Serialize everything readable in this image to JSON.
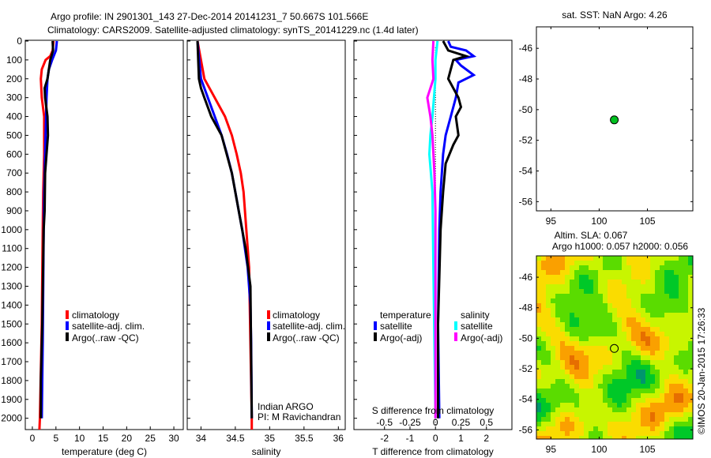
{
  "title": {
    "line1": "Argo profile: IN 2901301_143 27-Dec-2014 20141231_7 50.667S 101.566E",
    "line2": "Climatology: CARS2009. Satellite-adjusted climatology: synTS_20141229.nc (1.4d later)"
  },
  "colors": {
    "climatology": "#ff0000",
    "satellite": "#0000ff",
    "argo": "#000000",
    "sal_satellite": "#00ffff",
    "sal_argo": "#ff00ff"
  },
  "chart_data": [
    {
      "type": "line",
      "id": "temperature",
      "xlabel": "temperature (deg C)",
      "ylabel": "depth",
      "xlim": [
        -1.5,
        32
      ],
      "ylim": [
        2060,
        0
      ],
      "xticks": [
        0,
        5,
        10,
        15,
        20,
        25,
        30
      ],
      "yticks": [
        0,
        100,
        200,
        300,
        400,
        500,
        600,
        700,
        800,
        900,
        1000,
        1100,
        1200,
        1300,
        1400,
        1500,
        1600,
        1700,
        1800,
        1900,
        2000
      ],
      "legend": [
        "climatology",
        "satellite-adj. clim.",
        "Argo(..raw -QC)"
      ],
      "series": [
        {
          "name": "climatology",
          "color": "#ff0000",
          "depth": [
            0,
            50,
            80,
            100,
            150,
            200,
            300,
            400,
            600,
            800,
            1000,
            1500,
            2000,
            2060
          ],
          "values": [
            4.5,
            4.3,
            3.8,
            2.8,
            2.0,
            1.8,
            2.0,
            2.5,
            2.5,
            2.3,
            2.2,
            2.0,
            1.6,
            1.5
          ]
        },
        {
          "name": "satellite-adj. clim.",
          "color": "#0000ff",
          "depth": [
            0,
            50,
            100,
            150,
            200,
            300,
            400,
            600,
            800,
            1000,
            1300,
            1600,
            2000
          ],
          "values": [
            5.2,
            5.0,
            4.2,
            3.5,
            3.2,
            3.0,
            2.9,
            2.7,
            2.5,
            2.4,
            2.3,
            2.2,
            2.0
          ]
        },
        {
          "name": "Argo(..raw -QC)",
          "color": "#000000",
          "depth": [
            0,
            50,
            100,
            200,
            250,
            300,
            400,
            500,
            600,
            700,
            900,
            1000,
            1500,
            1800,
            2000
          ],
          "values": [
            4.3,
            4.4,
            3.8,
            3.2,
            2.6,
            2.7,
            3.2,
            3.3,
            3.0,
            2.7,
            2.6,
            2.4,
            2.1,
            1.8,
            1.8
          ]
        }
      ]
    },
    {
      "type": "line",
      "id": "salinity",
      "xlabel": "salinity",
      "xlim": [
        33.8,
        36.1
      ],
      "ylim": [
        2060,
        0
      ],
      "xticks": [
        34,
        34.5,
        35,
        35.5,
        36
      ],
      "legend": [
        "climatology",
        "satellite-adj. clim.",
        "Argo(..raw -QC)"
      ],
      "annotation": [
        "Indian ARGO",
        "PI: M Ravichandran"
      ],
      "series": [
        {
          "name": "climatology",
          "color": "#ff0000",
          "depth": [
            0,
            200,
            300,
            400,
            500,
            600,
            700,
            800,
            1000,
            1200,
            2000,
            2060
          ],
          "values": [
            33.95,
            34.05,
            34.2,
            34.35,
            34.45,
            34.52,
            34.58,
            34.62,
            34.66,
            34.7,
            34.74,
            34.74
          ]
        },
        {
          "name": "satellite-adj. clim.",
          "color": "#0000ff",
          "depth": [
            0,
            200,
            300,
            400,
            500,
            600,
            700,
            800,
            900,
            1000,
            1200,
            1400,
            1600,
            2000
          ],
          "values": [
            33.95,
            34.0,
            34.1,
            34.2,
            34.3,
            34.38,
            34.45,
            34.5,
            34.55,
            34.6,
            34.68,
            34.72,
            34.73,
            34.74
          ]
        },
        {
          "name": "Argo(..raw -QC)",
          "color": "#000000",
          "depth": [
            0,
            200,
            250,
            300,
            400,
            500,
            700,
            900,
            1100,
            1300,
            2000
          ],
          "values": [
            33.95,
            33.97,
            34.0,
            34.05,
            34.15,
            34.3,
            34.45,
            34.55,
            34.65,
            34.72,
            34.74
          ]
        }
      ]
    },
    {
      "type": "line",
      "id": "difference",
      "xlabel": "T difference from climatology",
      "x2label": "S difference from climatology",
      "xlim": [
        -3.2,
        3.0
      ],
      "x2lim": [
        -0.8,
        0.75
      ],
      "xticks": [
        -2,
        -1,
        0,
        1,
        2
      ],
      "x2ticks": [
        "-0.5",
        "-0.25",
        "0",
        "0.25",
        "0.5"
      ],
      "x2tickvalues": [
        -0.5,
        -0.25,
        0,
        0.25,
        0.5
      ],
      "ylim": [
        2060,
        0
      ],
      "legend": {
        "temperature_header": "temperature",
        "salinity_header": "salinity",
        "t_satellite": "satellite",
        "t_argo": "Argo(-adj)",
        "s_satellite": "satellite",
        "s_argo": "Argo(-adj)"
      },
      "series": [
        {
          "name": "T satellite",
          "axis": "T",
          "color": "#0000ff",
          "depth": [
            0,
            30,
            50,
            70,
            80,
            100,
            130,
            180,
            220,
            300,
            400,
            500,
            600,
            800,
            1000,
            1500,
            2000
          ],
          "values": [
            0.5,
            0.6,
            1.2,
            1.4,
            1.5,
            0.8,
            1.0,
            1.5,
            0.9,
            0.8,
            0.6,
            0.4,
            0.3,
            0.2,
            0.15,
            0.1,
            0.15
          ]
        },
        {
          "name": "T Argo(-adj)",
          "axis": "T",
          "color": "#000000",
          "depth": [
            0,
            50,
            80,
            100,
            150,
            200,
            300,
            350,
            400,
            500,
            550,
            650,
            800,
            1000,
            1500,
            2000
          ],
          "values": [
            0.3,
            0.5,
            1.2,
            0.7,
            0.6,
            0.5,
            0.9,
            1.0,
            0.8,
            0.9,
            0.7,
            0.4,
            0.3,
            0.2,
            0.1,
            0.1
          ]
        },
        {
          "name": "S satellite",
          "axis": "S",
          "color": "#00ffff",
          "depth": [
            0,
            100,
            200,
            400,
            500,
            600,
            800,
            1200,
            1600,
            2000
          ],
          "values": [
            0.02,
            0.0,
            0.0,
            -0.03,
            -0.05,
            -0.06,
            -0.03,
            -0.02,
            -0.01,
            0.0
          ]
        },
        {
          "name": "S Argo(-adj)",
          "axis": "S",
          "color": "#ff00ff",
          "depth": [
            0,
            100,
            200,
            250,
            300,
            400,
            500,
            700,
            900,
            1200,
            2000
          ],
          "values": [
            -0.02,
            -0.03,
            -0.02,
            -0.05,
            -0.08,
            -0.05,
            -0.03,
            -0.01,
            0.0,
            0.0,
            0.0
          ]
        }
      ]
    },
    {
      "type": "scatter",
      "id": "sst-map",
      "title": "sat. SST: NaN Argo: 4.26",
      "xlim": [
        93.5,
        109.7
      ],
      "ylim": [
        -56.6,
        -44.6
      ],
      "xticks": [
        95,
        100,
        105
      ],
      "yticks": [
        -46,
        -48,
        -50,
        -52,
        -54,
        -56
      ],
      "points": [
        {
          "lon": 101.566,
          "lat": -50.667
        }
      ]
    },
    {
      "type": "heatmap",
      "id": "sla-map",
      "title_line1": "Altim. SLA: 0.067",
      "title_line2": "Argo h1000: 0.057 h2000: 0.056",
      "xlim": [
        93.5,
        109.7
      ],
      "ylim": [
        -56.6,
        -44.6
      ],
      "xticks": [
        95,
        100,
        105
      ],
      "yticks": [
        -46,
        -48,
        -50,
        -52,
        -54,
        -56
      ],
      "points": [
        {
          "lon": 101.566,
          "lat": -50.667
        }
      ]
    }
  ],
  "footer": {
    "credit": "©IMOS 20-Jan-2015 17:26:33"
  }
}
